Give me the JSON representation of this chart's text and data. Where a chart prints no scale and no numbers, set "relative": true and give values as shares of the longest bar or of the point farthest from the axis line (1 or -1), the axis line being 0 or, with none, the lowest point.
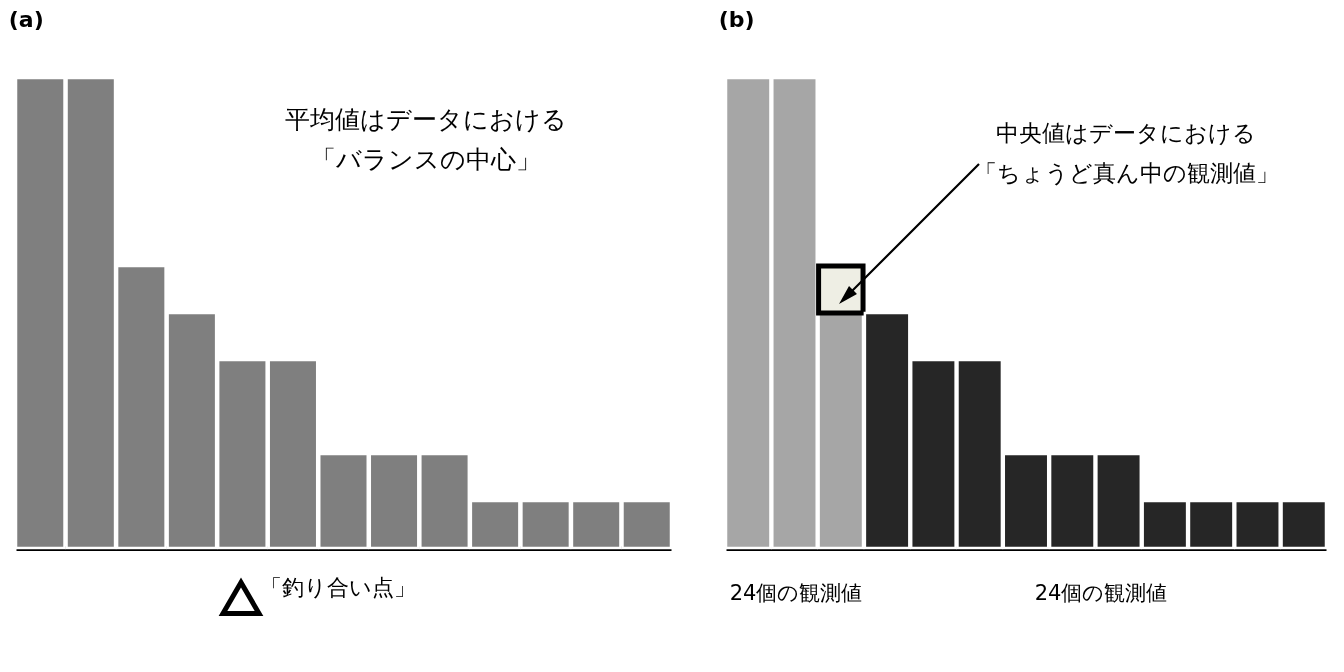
{
  "chart_data": [
    {
      "type": "bar",
      "title": "(a)",
      "relative": true,
      "categories": [
        null,
        null,
        null,
        null,
        null,
        null,
        null,
        null,
        null,
        null,
        null,
        null,
        null
      ],
      "values": [
        1,
        1,
        0.6,
        0.5,
        0.4,
        0.4,
        0.2,
        0.2,
        0.2,
        0.1,
        0.1,
        0.1,
        0.1
      ],
      "color": "#7f7f7f",
      "annotations": [
        "平均値はデータにおける",
        "「バランスの中心」",
        "「釣り合い点」"
      ]
    },
    {
      "type": "bar",
      "title": "(b)",
      "relative": true,
      "stacked": true,
      "categories": [
        null,
        null,
        null,
        null,
        null,
        null,
        null,
        null,
        null,
        null,
        null,
        null,
        null
      ],
      "series": [
        {
          "color": "#a6a6a6",
          "values": [
            1,
            1,
            0.5,
            null,
            null,
            null,
            null,
            null,
            null,
            null,
            null,
            null,
            null
          ]
        },
        {
          "color": "#eeeee4",
          "values": [
            null,
            null,
            0.1,
            null,
            null,
            null,
            null,
            null,
            null,
            null,
            null,
            null,
            null
          ]
        },
        {
          "color": "#262626",
          "values": [
            null,
            null,
            null,
            0.5,
            0.4,
            0.4,
            0.2,
            0.2,
            0.2,
            0.1,
            0.1,
            0.1,
            0.1
          ]
        }
      ],
      "annotations": [
        "中央値はデータにおける",
        "「ちょうど真ん中の観測値」",
        "24個の観測値",
        "24個の観測値"
      ]
    }
  ]
}
